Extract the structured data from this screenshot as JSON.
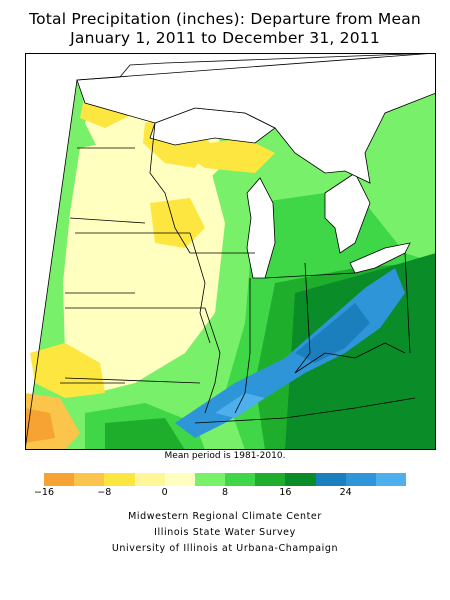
{
  "title": {
    "line1": "Total Precipitation (inches): Departure from Mean",
    "line2": "January 1, 2011 to December 31, 2011"
  },
  "note": "Mean period is 1981-2010.",
  "legend": {
    "colors": [
      "#f7a333",
      "#fbc44a",
      "#fde640",
      "#fff599",
      "#ffffc0",
      "#79f06a",
      "#3fd648",
      "#1fae2b",
      "#0a8d28",
      "#1c7fbd",
      "#2f95d9",
      "#4eafed"
    ],
    "ticks": [
      "−16",
      "−8",
      "0",
      "8",
      "16",
      "24"
    ]
  },
  "credits": {
    "line1": "Midwestern Regional Climate Center",
    "line2": "Illinois State Water Survey",
    "line3": "University of Illinois at Urbana-Champaign"
  }
}
